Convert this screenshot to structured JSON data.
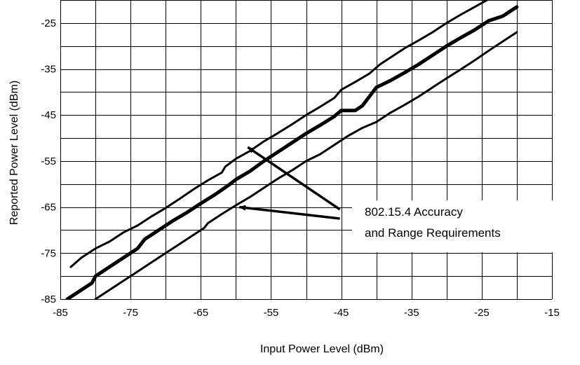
{
  "chart_data": {
    "type": "line",
    "title": "",
    "xlabel": "Input Power Level (dBm)",
    "ylabel": "Reported Power Level (dBm)",
    "xlim": [
      -85,
      -15
    ],
    "ylim": [
      -85,
      -20
    ],
    "x_ticks": [
      -85,
      -75,
      -65,
      -55,
      -45,
      -35,
      -25,
      -15
    ],
    "x_tick_labels": [
      "-85",
      "-75",
      "-65",
      "-55",
      "-45",
      "-35",
      "-25",
      "-15"
    ],
    "y_ticks": [
      -85,
      -75,
      -65,
      -55,
      -45,
      -35,
      -25
    ],
    "y_tick_labels": [
      "-85",
      "-75",
      "-65",
      "-55",
      "-45",
      "-35",
      "-25"
    ],
    "grid": true,
    "series": [
      {
        "style": "thin",
        "x": [
          -83.5,
          -82,
          -80,
          -78,
          -76,
          -74,
          -72,
          -70,
          -68,
          -66,
          -64,
          -62,
          -61.5,
          -60,
          -58,
          -56,
          -54,
          -52,
          -50,
          -48,
          -46,
          -45,
          -43,
          -41,
          -39.5,
          -38,
          -36,
          -34,
          -32,
          -30,
          -28,
          -26,
          -24,
          -22,
          -20.5
        ],
        "y": [
          -78,
          -76,
          -74,
          -72.5,
          -70.5,
          -69,
          -67,
          -65.2,
          -63.2,
          -61.1,
          -59.2,
          -57.5,
          -56.2,
          -54.5,
          -52.8,
          -50.7,
          -48.9,
          -47,
          -45,
          -43.2,
          -41.3,
          -39.5,
          -37.8,
          -36,
          -34,
          -32.5,
          -30.5,
          -28.8,
          -27,
          -25,
          -23.2,
          -21.5,
          -19.8,
          -18.2,
          -16.5
        ]
      },
      {
        "style": "thick",
        "x": [
          -84,
          -82,
          -80.5,
          -80,
          -78,
          -76,
          -74,
          -73,
          -71,
          -69,
          -67,
          -65,
          -63,
          -61,
          -60,
          -58,
          -56,
          -54,
          -52,
          -50,
          -48,
          -46,
          -45,
          -44,
          -43,
          -42,
          -41,
          -40,
          -38,
          -36,
          -34,
          -32,
          -30,
          -28,
          -26,
          -24,
          -22,
          -20
        ],
        "y": [
          -85,
          -83,
          -81.5,
          -80,
          -78,
          -76,
          -74,
          -72,
          -70,
          -68,
          -66.2,
          -64.2,
          -62.3,
          -60.2,
          -59,
          -57.2,
          -55,
          -53,
          -51,
          -49,
          -47.2,
          -45.3,
          -44,
          -44,
          -44,
          -43,
          -41,
          -39,
          -37.5,
          -35.8,
          -34,
          -32,
          -30,
          -28.2,
          -26.5,
          -24.5,
          -23.5,
          -21.5
        ]
      },
      {
        "style": "thin",
        "x": [
          -80,
          -78,
          -76,
          -74,
          -72,
          -70,
          -68,
          -66,
          -64.5,
          -64,
          -62,
          -60,
          -58,
          -56,
          -54,
          -52,
          -50,
          -48,
          -46,
          -44,
          -42,
          -40,
          -38,
          -36,
          -34,
          -32,
          -30,
          -28,
          -26,
          -24,
          -22,
          -20
        ],
        "y": [
          -85,
          -83,
          -81,
          -79,
          -77,
          -75,
          -73,
          -71,
          -69.5,
          -68.5,
          -66.5,
          -64.6,
          -62.8,
          -60.8,
          -58.8,
          -57,
          -55,
          -53.5,
          -51.5,
          -49.5,
          -47.8,
          -46.5,
          -44.5,
          -42.8,
          -41,
          -39,
          -37,
          -35.1,
          -33.1,
          -31,
          -29,
          -27
        ]
      }
    ],
    "annotations": [
      {
        "text_lines": [
          "802.15.4 Accuracy",
          "and Range Requirements"
        ],
        "arrows_to": [
          [
            -58.3,
            -52
          ],
          [
            -59.5,
            -65
          ]
        ],
        "arrows_from": [
          [
            -45.2,
            -65.5
          ],
          [
            -45.2,
            -67.5
          ]
        ]
      }
    ]
  }
}
